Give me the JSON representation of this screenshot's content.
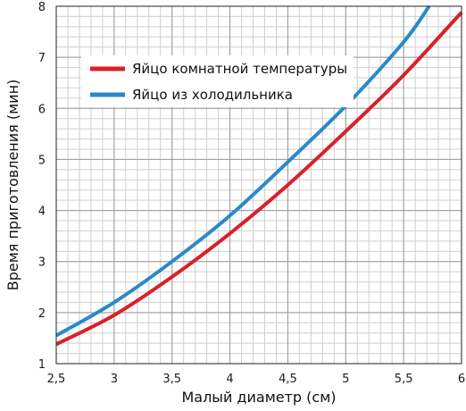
{
  "chart_data": {
    "type": "line",
    "xlabel": "Малый диаметр (см)",
    "ylabel": "Время приготовления (мин)",
    "xlim": [
      2.5,
      6
    ],
    "ylim": [
      1,
      8
    ],
    "x_ticks": [
      2.5,
      3,
      3.5,
      4,
      4.5,
      5,
      5.5,
      6
    ],
    "x_tick_labels": [
      "2,5",
      "3",
      "3,5",
      "4",
      "4,5",
      "5",
      "5,5",
      "6"
    ],
    "y_ticks": [
      1,
      2,
      3,
      4,
      5,
      6,
      7,
      8
    ],
    "y_tick_labels": [
      "1",
      "2",
      "3",
      "4",
      "5",
      "6",
      "7",
      "8"
    ],
    "minor_grid_step_x": 0.1,
    "minor_grid_step_y": 0.2,
    "grid": true,
    "legend_position": "top-left",
    "series": [
      {
        "name": "Яйцо комнатной температуры",
        "color": "#d8212a",
        "x": [
          2.5,
          3,
          3.5,
          4,
          4.5,
          5,
          5.5,
          6
        ],
        "y": [
          1.38,
          1.95,
          2.7,
          3.55,
          4.5,
          5.55,
          6.65,
          7.88
        ]
      },
      {
        "name": "Яйцо из холодильника",
        "color": "#2a8ac8",
        "x": [
          2.5,
          3,
          3.5,
          4,
          4.5,
          5,
          5.5,
          5.72
        ],
        "y": [
          1.55,
          2.2,
          3.0,
          3.9,
          4.95,
          6.05,
          7.3,
          8.0
        ]
      }
    ]
  }
}
